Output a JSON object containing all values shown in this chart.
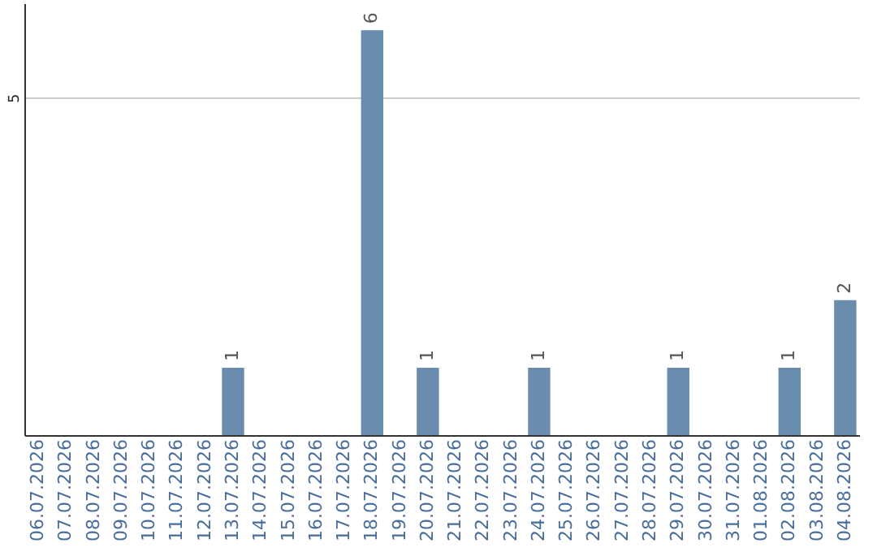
{
  "chart_data": {
    "type": "bar",
    "categories": [
      "06.07.2026",
      "07.07.2026",
      "08.07.2026",
      "09.07.2026",
      "10.07.2026",
      "11.07.2026",
      "12.07.2026",
      "13.07.2026",
      "14.07.2026",
      "15.07.2026",
      "16.07.2026",
      "17.07.2026",
      "18.07.2026",
      "19.07.2026",
      "20.07.2026",
      "21.07.2026",
      "22.07.2026",
      "23.07.2026",
      "24.07.2026",
      "25.07.2026",
      "26.07.2026",
      "27.07.2026",
      "28.07.2026",
      "29.07.2026",
      "30.07.2026",
      "31.07.2026",
      "01.08.2026",
      "02.08.2026",
      "03.08.2026",
      "04.08.2026"
    ],
    "values": [
      0,
      0,
      0,
      0,
      0,
      0,
      0,
      1,
      0,
      0,
      0,
      0,
      6,
      0,
      1,
      0,
      0,
      0,
      1,
      0,
      0,
      0,
      0,
      1,
      0,
      0,
      0,
      1,
      0,
      2
    ],
    "value_labels": [
      null,
      null,
      null,
      null,
      null,
      null,
      null,
      "1",
      null,
      null,
      null,
      null,
      "6",
      null,
      "1",
      null,
      null,
      null,
      "1",
      null,
      null,
      null,
      null,
      "1",
      null,
      null,
      null,
      "1",
      null,
      "2"
    ],
    "color": "#6a8caf",
    "ylim": [
      0,
      6.4
    ],
    "yticks": [
      5
    ],
    "grid": "y"
  }
}
